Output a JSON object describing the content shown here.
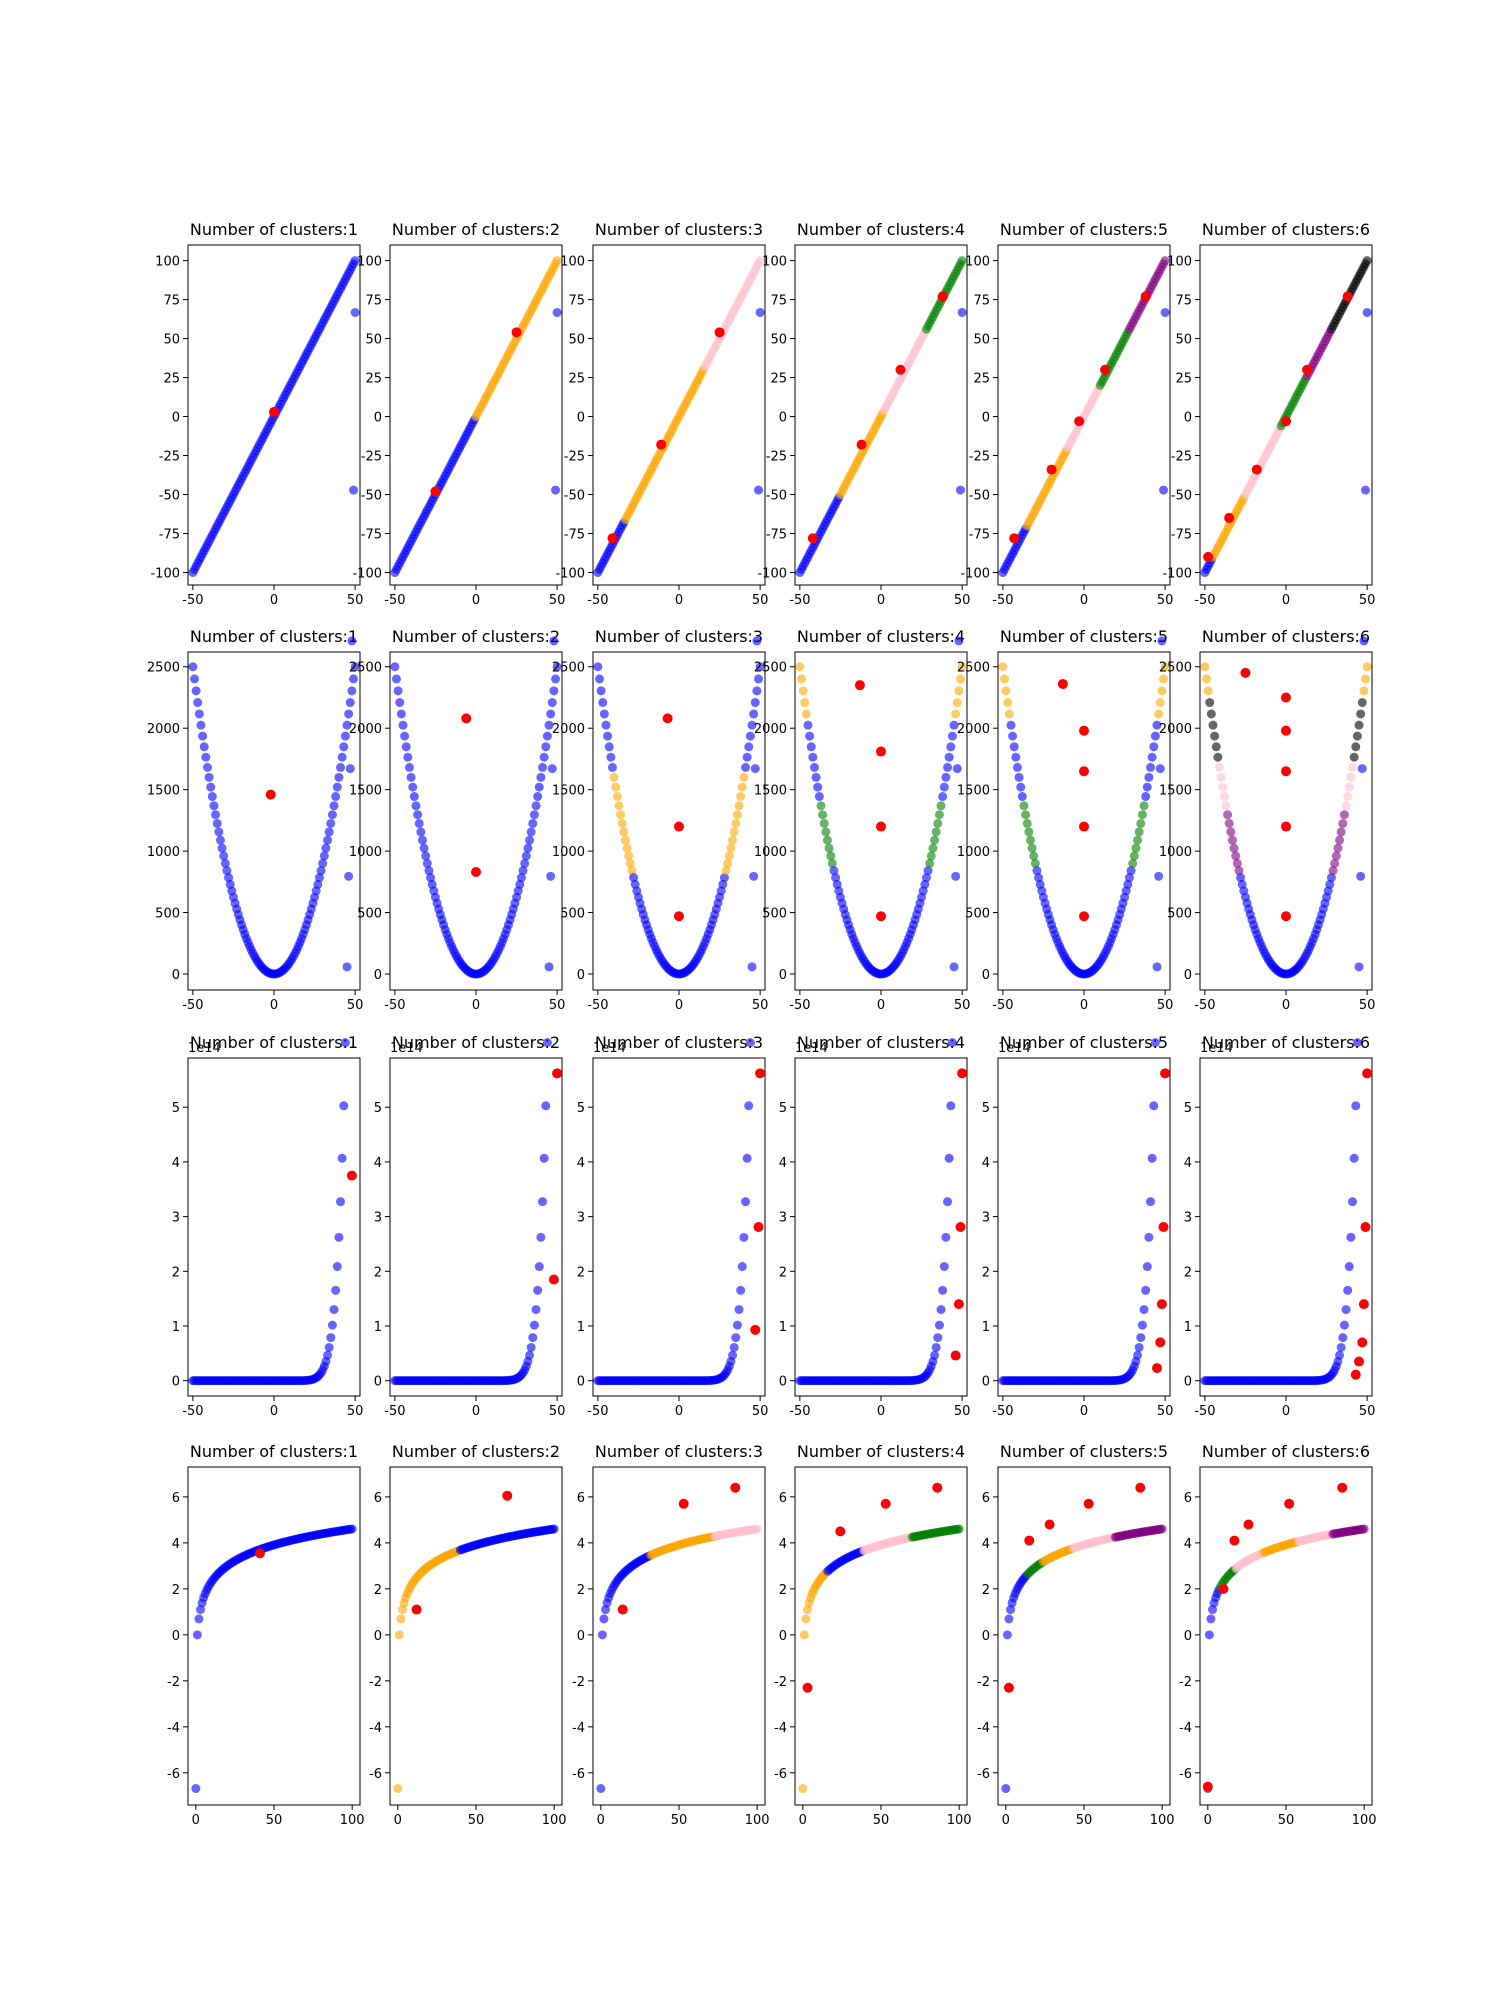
{
  "figure": {
    "title_prefix": "Number of clusters:",
    "cluster_counts": [
      1,
      2,
      3,
      4,
      5,
      6
    ],
    "palette": [
      "#0000ff",
      "#ffa500",
      "#ffc0cb",
      "#008000",
      "#800080",
      "#000000"
    ],
    "centroid_color": "#ff0000"
  },
  "chart_data": [
    {
      "type": "scatter",
      "function": "linear",
      "x_range": [
        -50,
        50
      ],
      "xlim": [
        -53,
        53
      ],
      "ylim": [
        -108,
        110
      ],
      "xticks": [
        "-50",
        "0",
        "50"
      ],
      "yticks": [
        "-100",
        "-75",
        "-50",
        "-25",
        "0",
        "25",
        "50",
        "75",
        "100"
      ],
      "y_offset_label": "",
      "panels": [
        {
          "title": "Number of clusters:1",
          "breaks": [],
          "centroids": [
            [
              0,
              3
            ]
          ]
        },
        {
          "title": "Number of clusters:2",
          "breaks": [
            0
          ],
          "centroids": [
            [
              -25,
              -48
            ],
            [
              25,
              54
            ]
          ]
        },
        {
          "title": "Number of clusters:3",
          "breaks": [
            -33,
            16
          ],
          "centroids": [
            [
              -41,
              -78
            ],
            [
              -11,
              -18
            ],
            [
              25,
              54
            ]
          ]
        },
        {
          "title": "Number of clusters:4",
          "breaks": [
            -25,
            2,
            28
          ],
          "centroids": [
            [
              -42,
              -78
            ],
            [
              -12,
              -18
            ],
            [
              12,
              30
            ],
            [
              38,
              77
            ]
          ]
        },
        {
          "title": "Number of clusters:5",
          "breaks": [
            -35,
            -10,
            10,
            28
          ],
          "centroids": [
            [
              -43,
              -78
            ],
            [
              -20,
              -34
            ],
            [
              -3,
              -3
            ],
            [
              13,
              30
            ],
            [
              38,
              77
            ]
          ]
        },
        {
          "title": "Number of clusters:6",
          "breaks": [
            -45,
            -25,
            -3,
            13,
            28
          ],
          "centroids": [
            [
              -48,
              -90
            ],
            [
              -35,
              -65
            ],
            [
              -18,
              -34
            ],
            [
              0,
              -3
            ],
            [
              13,
              30
            ],
            [
              38,
              77
            ]
          ]
        }
      ]
    },
    {
      "type": "scatter",
      "function": "quadratic",
      "x_range": [
        -50,
        50
      ],
      "xlim": [
        -53,
        53
      ],
      "ylim": [
        -130,
        2620
      ],
      "xticks": [
        "-50",
        "0",
        "50"
      ],
      "yticks": [
        "0",
        "500",
        "1000",
        "1500",
        "2000",
        "2500"
      ],
      "y_offset_label": "",
      "panels": [
        {
          "title": "Number of clusters:1",
          "bands": [],
          "centroids": [
            [
              -2,
              1460
            ]
          ]
        },
        {
          "title": "Number of clusters:2",
          "bands": [
            [
              1500,
              0
            ]
          ],
          "centroids": [
            [
              -6,
              2080
            ],
            [
              0,
              830
            ]
          ]
        },
        {
          "title": "Number of clusters:3",
          "bands": [
            [
              1670,
              0
            ],
            [
              790,
              1
            ]
          ],
          "centroids": [
            [
              -7,
              2080
            ],
            [
              0,
              1200
            ],
            [
              0,
              470
            ]
          ]
        },
        {
          "title": "Number of clusters:4",
          "bands": [
            [
              2100,
              1
            ],
            [
              1400,
              0
            ],
            [
              850,
              3
            ]
          ],
          "centroids": [
            [
              -13,
              2350
            ],
            [
              0,
              1810
            ],
            [
              0,
              1200
            ],
            [
              0,
              470
            ]
          ]
        },
        {
          "title": "Number of clusters:5",
          "bands": [
            [
              2100,
              1
            ],
            [
              1400,
              0
            ],
            [
              850,
              3
            ]
          ],
          "centroids": [
            [
              -13,
              2360
            ],
            [
              0,
              1980
            ],
            [
              0,
              1650
            ],
            [
              0,
              1200
            ],
            [
              0,
              470
            ]
          ]
        },
        {
          "title": "Number of clusters:6",
          "bands": [
            [
              2300,
              1
            ],
            [
              1700,
              5
            ],
            [
              1300,
              2
            ],
            [
              800,
              4
            ]
          ],
          "centroids": [
            [
              -25,
              2450
            ],
            [
              0,
              2250
            ],
            [
              0,
              1980
            ],
            [
              0,
              1650
            ],
            [
              0,
              1200
            ],
            [
              0,
              470
            ]
          ]
        }
      ]
    },
    {
      "type": "scatter",
      "function": "power",
      "x_range": [
        -50,
        50
      ],
      "xlim": [
        -53,
        53
      ],
      "ylim": [
        -0.28,
        5.9
      ],
      "xticks": [
        "-50",
        "0",
        "50"
      ],
      "yticks": [
        "0",
        "1",
        "2",
        "3",
        "4",
        "5"
      ],
      "y_offset_label": "1e14",
      "panels": [
        {
          "title": "Number of clusters:1",
          "centroids": [
            [
              48,
              3.75
            ]
          ]
        },
        {
          "title": "Number of clusters:2",
          "centroids": [
            [
              48,
              1.85
            ],
            [
              50,
              5.62
            ]
          ]
        },
        {
          "title": "Number of clusters:3",
          "centroids": [
            [
              47,
              0.93
            ],
            [
              49,
              2.81
            ],
            [
              50,
              5.62
            ]
          ]
        },
        {
          "title": "Number of clusters:4",
          "centroids": [
            [
              46,
              0.46
            ],
            [
              48,
              1.4
            ],
            [
              49,
              2.81
            ],
            [
              50,
              5.62
            ]
          ]
        },
        {
          "title": "Number of clusters:5",
          "centroids": [
            [
              45,
              0.23
            ],
            [
              47,
              0.7
            ],
            [
              48,
              1.4
            ],
            [
              49,
              2.81
            ],
            [
              50,
              5.62
            ]
          ]
        },
        {
          "title": "Number of clusters:6",
          "centroids": [
            [
              43,
              0.11
            ],
            [
              45,
              0.35
            ],
            [
              47,
              0.7
            ],
            [
              48,
              1.4
            ],
            [
              49,
              2.81
            ],
            [
              50,
              5.62
            ]
          ]
        }
      ]
    },
    {
      "type": "scatter",
      "function": "log",
      "x_range": [
        0,
        100
      ],
      "xlim": [
        -5,
        105
      ],
      "ylim": [
        -7.4,
        7.3
      ],
      "xticks": [
        "0",
        "50",
        "100"
      ],
      "yticks": [
        "-6",
        "-4",
        "-2",
        "0",
        "2",
        "4",
        "6"
      ],
      "y_offset_label": "",
      "panels": [
        {
          "title": "Number of clusters:1",
          "breaks": [],
          "centroids": [
            [
              41,
              3.55
            ]
          ]
        },
        {
          "title": "Number of clusters:2",
          "breaks": [
            40
          ],
          "colors": [
            1,
            0
          ],
          "centroids": [
            [
              12,
              1.1
            ],
            [
              70,
              6.05
            ]
          ]
        },
        {
          "title": "Number of clusters:3",
          "breaks": [
            32,
            73
          ],
          "colors": [
            0,
            1,
            2
          ],
          "centroids": [
            [
              14,
              1.1
            ],
            [
              53,
              5.7
            ],
            [
              86,
              6.4
            ]
          ]
        },
        {
          "title": "Number of clusters:4",
          "breaks": [
            16,
            39,
            70
          ],
          "colors": [
            1,
            0,
            2,
            3
          ],
          "centroids": [
            [
              3,
              -2.3
            ],
            [
              24,
              4.5
            ],
            [
              53,
              5.7
            ],
            [
              86,
              6.4
            ]
          ]
        },
        {
          "title": "Number of clusters:5",
          "breaks": [
            14,
            24,
            43,
            70
          ],
          "colors": [
            0,
            3,
            1,
            2,
            4
          ],
          "centroids": [
            [
              2,
              -2.3
            ],
            [
              15,
              4.1
            ],
            [
              28,
              4.8
            ],
            [
              53,
              5.7
            ],
            [
              86,
              6.4
            ]
          ]
        },
        {
          "title": "Number of clusters:6",
          "breaks": [
            8,
            18,
            36,
            58,
            80
          ],
          "colors": [
            0,
            3,
            2,
            1,
            2,
            4
          ],
          "centroids": [
            [
              0,
              -6.6
            ],
            [
              10,
              2.0
            ],
            [
              17,
              4.1
            ],
            [
              26,
              4.8
            ],
            [
              52,
              5.7
            ],
            [
              86,
              6.4
            ]
          ]
        }
      ]
    }
  ]
}
